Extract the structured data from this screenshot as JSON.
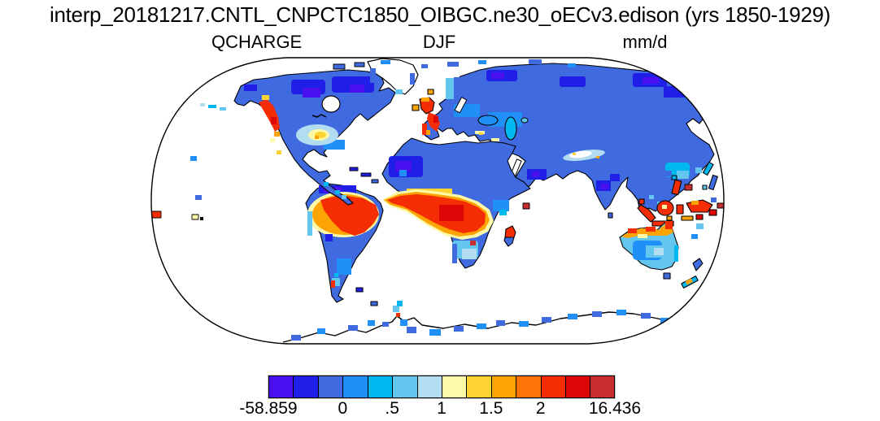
{
  "header": {
    "title": "interp_20181217.CNTL_CNPCTC1850_OIBGC.ne30_oECv3.edison (yrs 1850-1929)",
    "variable_label": "QCHARGE",
    "season_label": "DJF",
    "units_label": "mm/d"
  },
  "chart_data": {
    "type": "heatmap",
    "subtype": "global-lat-lon-map",
    "projection": "Robinson",
    "variable": "QCHARGE",
    "season": "DJF",
    "units": "mm/d",
    "value_min": -58.859,
    "value_max": 16.436,
    "grid": "coarse model grid (blocky ~1-2 degree cells), data over land only, oceans blank",
    "palette": [
      "#4A10F0",
      "#1F1FE8",
      "#3F6AE0",
      "#2090F8",
      "#00B8F0",
      "#62C6EE",
      "#B2DCF0",
      "#FCFAA8",
      "#FDD431",
      "#FDA405",
      "#FB7405",
      "#F52D05",
      "#DE0707",
      "#C92E2E"
    ],
    "colorbar": {
      "cell_count": 14,
      "tick_labels": [
        "-58.859",
        "0",
        ".5",
        "1",
        "1.5",
        "2",
        "16.436"
      ],
      "tick_cell_boundaries": [
        0,
        3,
        5,
        7,
        9,
        11,
        14
      ],
      "orientation": "horizontal",
      "position": "bottom center"
    },
    "regions_readout": [
      {
        "name": "Amazon basin",
        "value_class": "> 2 mm/d (deep red)"
      },
      {
        "name": "Congo / equatorial Africa",
        "value_class": "> 2 mm/d (deep red)"
      },
      {
        "name": "Maritime Continent (Sumatra, Borneo, New Guinea, Philippines)",
        "value_class": "> 2 mm/d (red)"
      },
      {
        "name": "Pacific Northwest coast of North America",
        "value_class": "~2 mm/d (red/orange strip)"
      },
      {
        "name": "British Isles and western France / Iberia coast",
        "value_class": "1.5 - 2+ mm/d (orange/red)"
      },
      {
        "name": "Northern Australia coastal fringe",
        "value_class": "1.5 - 2 mm/d (orange/red)"
      },
      {
        "name": "Central/southern Australia",
        "value_class": "0.5 - 1 mm/d (light blue)"
      },
      {
        "name": "Southern Africa / Madagascar north",
        "value_class": "0.5 - 2 mm/d (mixed)"
      },
      {
        "name": "Sahara, Arabia, India interior",
        "value_class": "< 0.5 mm/d (blue / dark blue)"
      },
      {
        "name": "Siberia, Canada, high latitudes",
        "value_class": "< 0.5 mm/d (blue / violet)"
      },
      {
        "name": "Greenland and Antarctica interiors",
        "value_class": "no data (white)"
      },
      {
        "name": "Oceans",
        "value_class": "no data (white)"
      }
    ]
  },
  "colors": {
    "ink": "#000000",
    "background": "#ffffff"
  }
}
